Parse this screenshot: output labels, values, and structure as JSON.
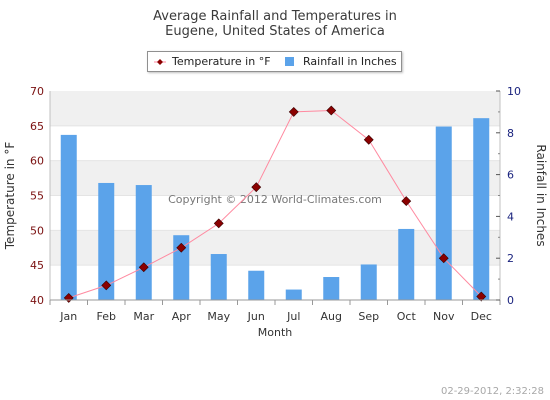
{
  "title_line1": "Average Rainfall and Temperatures in",
  "title_line2": "Eugene, United States of America",
  "legend": {
    "temp_label": "Temperature in °F",
    "rain_label": "Rainfall in Inches"
  },
  "watermark": "Copyright © 2012 World-Climates.com",
  "timestamp": "02-29-2012, 2:32:28",
  "colors": {
    "bar": "#5ba3ea",
    "line": "#ff8aa0",
    "marker": "#8b0000",
    "left_axis": "#7a1010",
    "right_axis": "#1a237e",
    "band": "#f0f0f0"
  },
  "chart_data": {
    "type": "bar+line",
    "title": "Average Rainfall and Temperatures in Eugene, United States of America",
    "xlabel": "Month",
    "categories": [
      "Jan",
      "Feb",
      "Mar",
      "Apr",
      "May",
      "Jun",
      "Jul",
      "Aug",
      "Sep",
      "Oct",
      "Nov",
      "Dec"
    ],
    "y_left": {
      "label": "Temperature in °F",
      "range": [
        40,
        70
      ],
      "ticks": [
        "40",
        "45",
        "50",
        "55",
        "60",
        "65",
        "70"
      ]
    },
    "y_right": {
      "label": "Rainfall in Inches",
      "range": [
        0,
        10
      ],
      "ticks": [
        "0",
        "2",
        "4",
        "6",
        "8",
        "10"
      ]
    },
    "series": [
      {
        "name": "Rainfall in Inches",
        "type": "bar",
        "axis": "right",
        "values": [
          7.9,
          5.6,
          5.5,
          3.1,
          2.2,
          1.4,
          0.5,
          1.1,
          1.7,
          3.4,
          8.3,
          8.7
        ]
      },
      {
        "name": "Temperature in °F",
        "type": "line",
        "axis": "left",
        "values": [
          40.3,
          42.1,
          44.7,
          47.5,
          51.0,
          56.2,
          67.0,
          67.2,
          63.0,
          54.2,
          46.0,
          40.5
        ]
      }
    ],
    "grid": "horizontal bands",
    "legend_position": "top-center"
  }
}
